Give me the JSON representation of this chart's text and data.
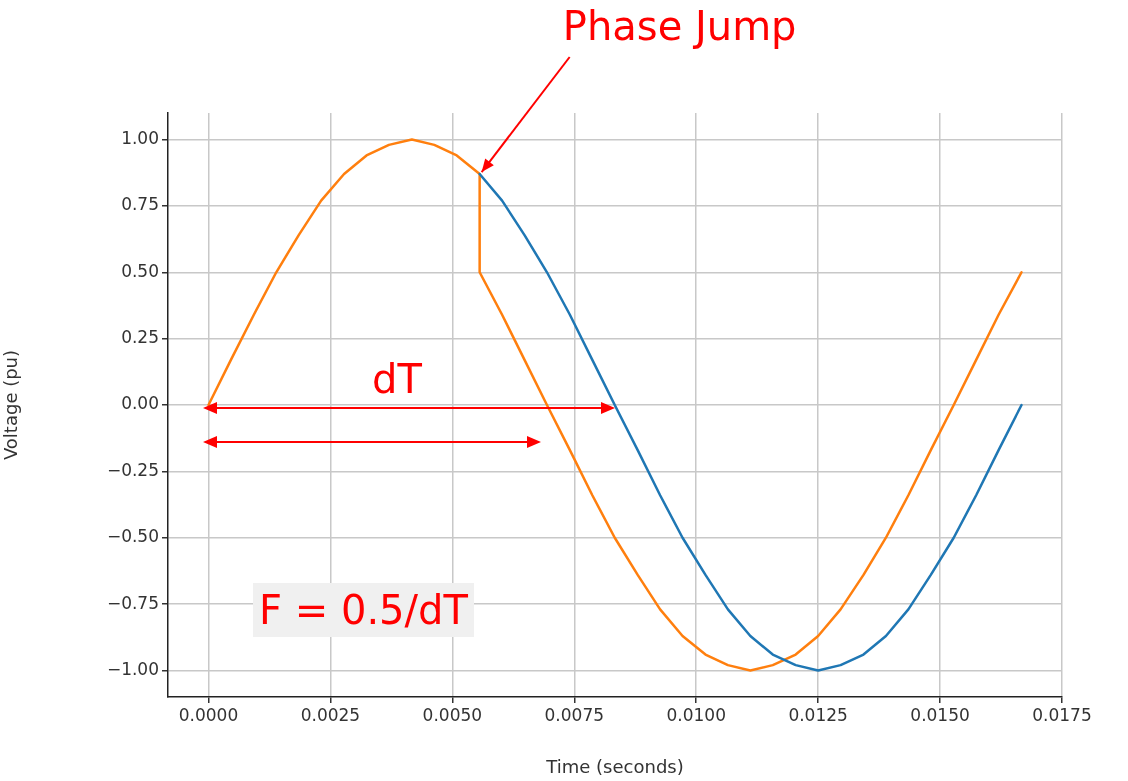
{
  "chart_data": {
    "type": "line",
    "xlabel": "Time (seconds)",
    "ylabel": "Voltage (pu)",
    "xlim": [
      -0.00083,
      0.0175
    ],
    "ylim": [
      -1.1,
      1.1
    ],
    "xticks": [
      {
        "value": 0,
        "label": "0.0000"
      },
      {
        "value": 0.0025,
        "label": "0.0025"
      },
      {
        "value": 0.005,
        "label": "0.0050"
      },
      {
        "value": 0.0075,
        "label": "0.0075"
      },
      {
        "value": 0.01,
        "label": "0.0100"
      },
      {
        "value": 0.0125,
        "label": "0.0125"
      },
      {
        "value": 0.015,
        "label": "0.0150"
      },
      {
        "value": 0.0175,
        "label": "0.0175"
      }
    ],
    "yticks": [
      {
        "value": -1,
        "label": "−1.00"
      },
      {
        "value": -0.75,
        "label": "−0.75"
      },
      {
        "value": -0.5,
        "label": "−0.50"
      },
      {
        "value": -0.25,
        "label": "−0.25"
      },
      {
        "value": 0,
        "label": "0.00"
      },
      {
        "value": 0.25,
        "label": "0.25"
      },
      {
        "value": 0.5,
        "label": "0.50"
      },
      {
        "value": 0.75,
        "label": "0.75"
      },
      {
        "value": 1,
        "label": "1.00"
      }
    ],
    "grid": true,
    "legend": false,
    "marker": "none",
    "line_style": "solid",
    "series": [
      {
        "color": "#1f77b4",
        "x": [
          0.00556,
          0.00602,
          0.00648,
          0.00694,
          0.00741,
          0.00787,
          0.00833,
          0.0088,
          0.00926,
          0.00972,
          0.01019,
          0.01065,
          0.01111,
          0.01157,
          0.01204,
          0.0125,
          0.01296,
          0.01343,
          0.01389,
          0.01435,
          0.01481,
          0.01528,
          0.01574,
          0.0162,
          0.01667
        ],
        "values": [
          0.87,
          0.77,
          0.64,
          0.5,
          0.34,
          0.17,
          0,
          -0.17,
          -0.34,
          -0.5,
          -0.64,
          -0.77,
          -0.87,
          -0.94,
          -0.98,
          -1,
          -0.98,
          -0.94,
          -0.87,
          -0.77,
          -0.64,
          -0.5,
          -0.34,
          -0.17,
          0
        ]
      },
      {
        "color": "#ff7f0e",
        "x": [
          0,
          0.00046,
          0.00093,
          0.00139,
          0.00185,
          0.00231,
          0.00278,
          0.00324,
          0.0037,
          0.00417,
          0.00463,
          0.00509,
          0.00556,
          0.00556,
          0.00602,
          0.00648,
          0.00694,
          0.00741,
          0.00787,
          0.00833,
          0.0088,
          0.00926,
          0.00972,
          0.01019,
          0.01065,
          0.01111,
          0.01157,
          0.01204,
          0.0125,
          0.01296,
          0.01343,
          0.01389,
          0.01435,
          0.01481,
          0.01528,
          0.01574,
          0.0162,
          0.01667
        ],
        "values": [
          0,
          0.17,
          0.34,
          0.5,
          0.64,
          0.77,
          0.87,
          0.94,
          0.98,
          1,
          0.98,
          0.94,
          0.87,
          0.5,
          0.34,
          0.17,
          0,
          -0.17,
          -0.34,
          -0.5,
          -0.64,
          -0.77,
          -0.87,
          -0.94,
          -0.98,
          -1,
          -0.98,
          -0.94,
          -0.87,
          -0.77,
          -0.64,
          -0.5,
          -0.34,
          -0.17,
          0,
          0.17,
          0.34,
          0.5
        ]
      }
    ],
    "annotations": [
      {
        "text": "Phase Jump",
        "x": 0.00556,
        "y": 0.87
      },
      "dT",
      "F = 0.5/dT"
    ]
  }
}
